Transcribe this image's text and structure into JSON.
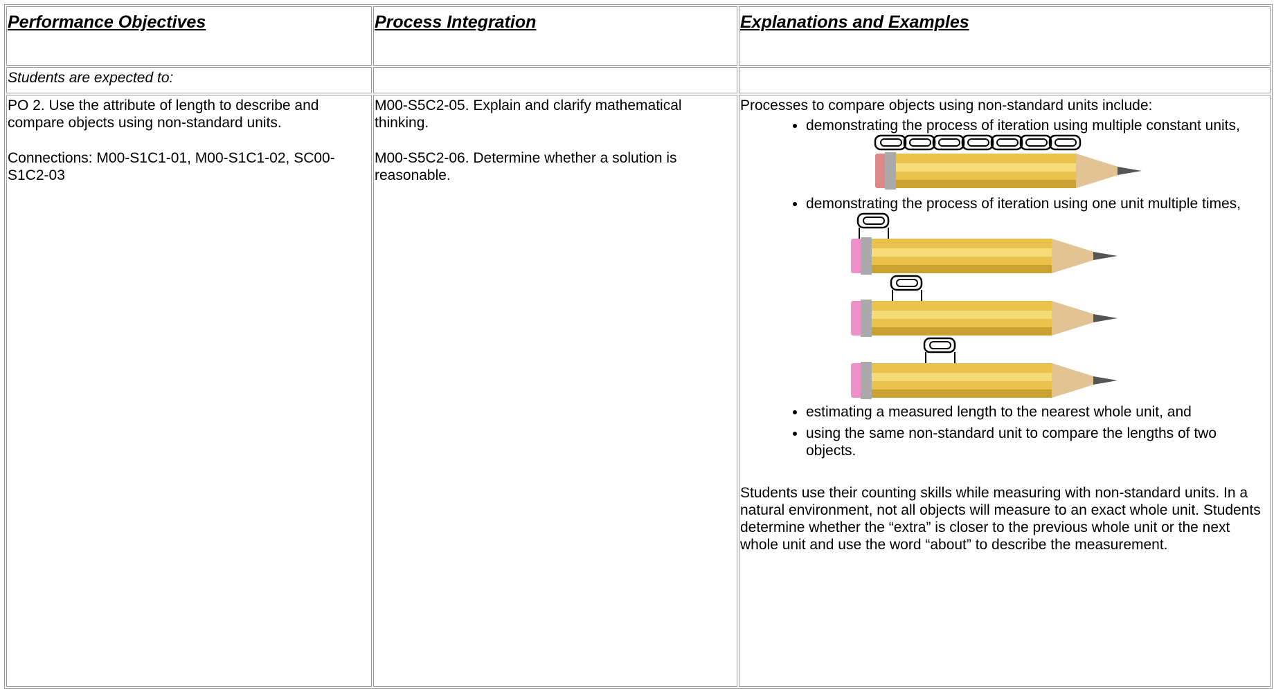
{
  "header": {
    "columns": [
      "Performance Objectives",
      "Process Integration",
      "Explanations and Examples"
    ]
  },
  "intro": "Students are expected to:",
  "row": {
    "objective": {
      "text": "PO 2.  Use the attribute of length to describe and compare objects using non-standard units.",
      "connections": "Connections:  M00-S1C1-01, M00-S1C1-02, SC00-S1C2-03"
    },
    "process": [
      "M00-S5C2-05.  Explain and clarify mathematical thinking.",
      "M00-S5C2-06.  Determine whether a solution is reasonable."
    ],
    "explanations": {
      "intro": "Processes to compare objects using non-standard units include:",
      "bullets": [
        "demonstrating the process of iteration using multiple constant units,",
        "demonstrating the process of iteration using one unit multiple times,",
        "estimating a measured length to the nearest whole unit, and",
        "using the same non-standard unit to compare the lengths of two objects."
      ],
      "paragraph": "Students use their counting skills while measuring with non-standard units. In a natural environment, not all objects will measure to an exact whole unit. Students determine whether the “extra” is closer to the previous whole unit or the next whole unit and use the word “about” to describe the measurement."
    }
  }
}
